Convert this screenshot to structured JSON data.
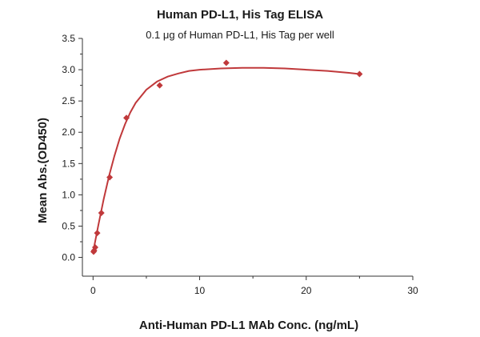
{
  "chart_data": {
    "type": "scatter",
    "title": "Human PD-L1, His Tag ELISA",
    "subtitle": "0.1 μg of Human PD-L1, His Tag per well",
    "xlabel": "Anti-Human PD-L1 MAb Conc. (ng/mL)",
    "ylabel": "Mean Abs.(OD450)",
    "xlim": [
      -1,
      30
    ],
    "ylim": [
      -0.3,
      3.5
    ],
    "x_ticks": [
      0,
      10,
      20,
      30
    ],
    "y_ticks": [
      0.0,
      0.5,
      1.0,
      1.5,
      2.0,
      2.5,
      3.0,
      3.5
    ],
    "y_tick_labels": [
      "0.0",
      "0.5",
      "1.0",
      "1.5",
      "2.0",
      "2.5",
      "3.0",
      "3.5"
    ],
    "grid": false,
    "legend": "none",
    "series": [
      {
        "x": [
          0.05,
          0.1,
          0.2,
          0.39,
          0.78,
          1.56,
          3.13,
          6.25,
          12.5,
          25
        ],
        "y": [
          0.09,
          0.11,
          0.16,
          0.39,
          0.71,
          1.28,
          2.23,
          2.75,
          3.11,
          2.93
        ]
      }
    ],
    "fit_curve": [
      [
        0.0,
        0.08
      ],
      [
        0.5,
        0.52
      ],
      [
        1.0,
        0.93
      ],
      [
        1.5,
        1.3
      ],
      [
        2.0,
        1.62
      ],
      [
        2.5,
        1.9
      ],
      [
        3.0,
        2.13
      ],
      [
        3.5,
        2.32
      ],
      [
        4.0,
        2.47
      ],
      [
        5.0,
        2.68
      ],
      [
        6.0,
        2.81
      ],
      [
        7.0,
        2.89
      ],
      [
        8.0,
        2.94
      ],
      [
        9.0,
        2.98
      ],
      [
        10.0,
        3.0
      ],
      [
        12.0,
        3.02
      ],
      [
        14.0,
        3.03
      ],
      [
        16.0,
        3.03
      ],
      [
        18.0,
        3.02
      ],
      [
        20.0,
        3.0
      ],
      [
        22.0,
        2.98
      ],
      [
        24.0,
        2.95
      ],
      [
        25.0,
        2.93
      ]
    ],
    "colors": {
      "series": "#c0393b",
      "axis": "#333333"
    }
  }
}
